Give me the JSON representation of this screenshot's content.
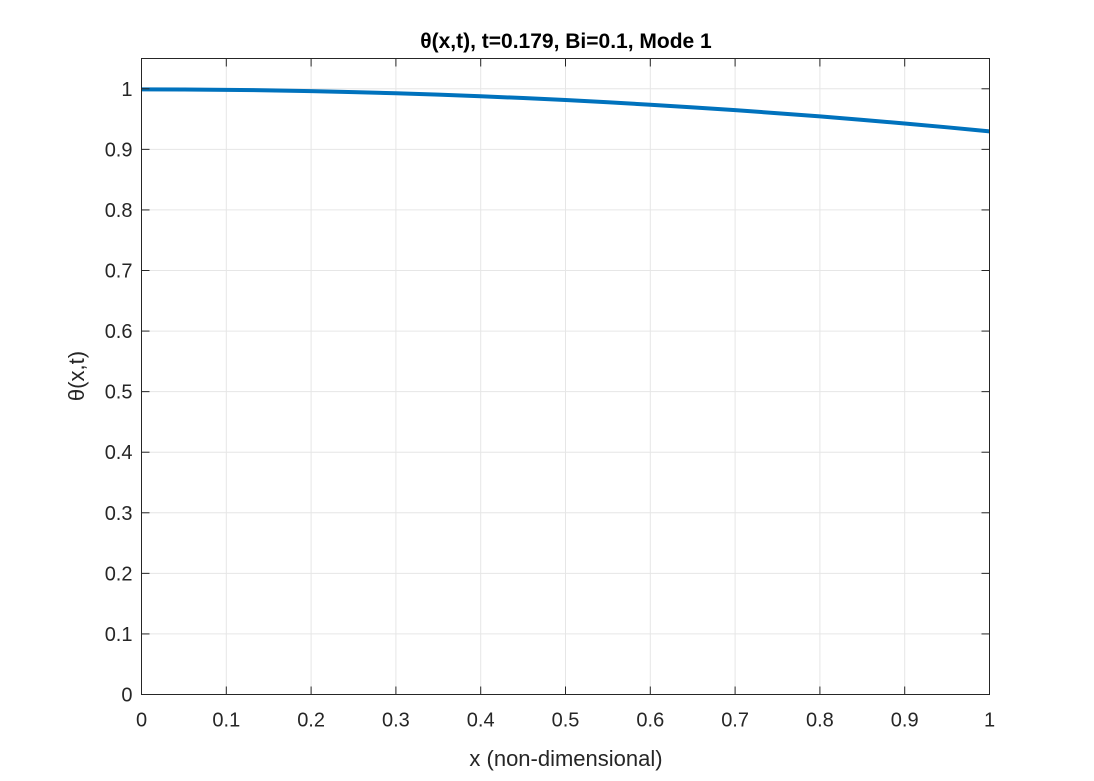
{
  "chart_data": {
    "type": "line",
    "title": "θ(x,t), t=0.179, Bi=0.1, Mode 1",
    "xlabel": "x (non-dimensional)",
    "ylabel": "θ(x,t)",
    "xlim": [
      0,
      1
    ],
    "ylim": [
      0,
      1.05
    ],
    "grid": true,
    "xticks": [
      "0",
      "0.1",
      "0.2",
      "0.3",
      "0.4",
      "0.5",
      "0.6",
      "0.7",
      "0.8",
      "0.9",
      "1"
    ],
    "yticks": [
      "0",
      "0.1",
      "0.2",
      "0.3",
      "0.4",
      "0.5",
      "0.6",
      "0.7",
      "0.8",
      "0.9",
      "1"
    ],
    "series": [
      {
        "color": "#0072bd",
        "x": [
          0,
          0.05,
          0.1,
          0.15,
          0.2,
          0.25,
          0.3,
          0.35,
          0.4,
          0.45,
          0.5,
          0.55,
          0.6,
          0.65,
          0.7,
          0.75,
          0.8,
          0.85,
          0.9,
          0.95,
          1.0
        ],
        "y": [
          0.999,
          0.9988,
          0.9983,
          0.9974,
          0.9961,
          0.9945,
          0.9926,
          0.9903,
          0.9877,
          0.9847,
          0.9814,
          0.9777,
          0.9737,
          0.9694,
          0.9647,
          0.9597,
          0.9544,
          0.9487,
          0.9427,
          0.9364,
          0.9297
        ]
      }
    ]
  }
}
